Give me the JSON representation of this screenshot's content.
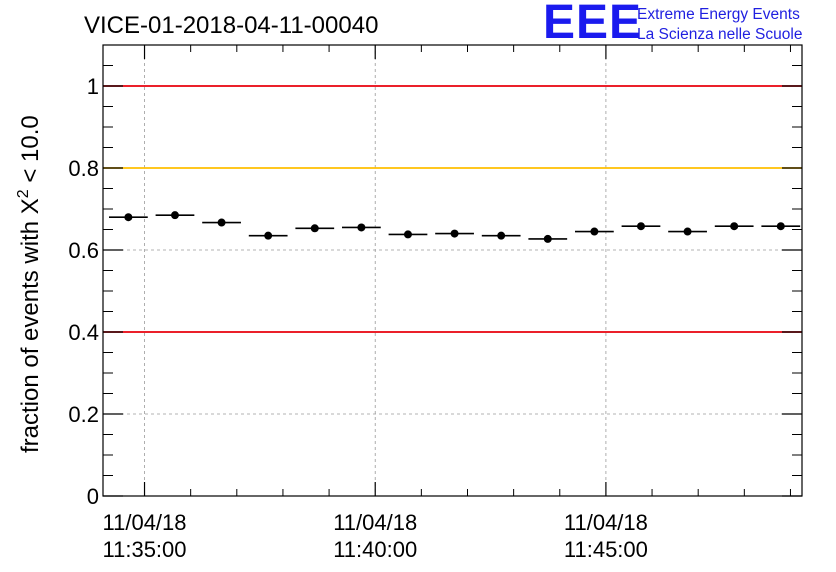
{
  "chart_data": {
    "type": "scatter",
    "title": "VICE-01-2018-04-11-00040",
    "ylabel_main": "fraction of events with",
    "ylabel_symbol": "X",
    "ylabel_exponent": "2",
    "ylabel_tail": "< 10.0",
    "xlabel": "",
    "ylim": [
      0,
      1.1
    ],
    "xlim_minutes": [
      -0.9,
      14.25
    ],
    "x_ticks": [
      {
        "minute": 0,
        "date": "11/04/18",
        "time": "11:35:00"
      },
      {
        "minute": 5,
        "date": "11/04/18",
        "time": "11:40:00"
      },
      {
        "minute": 10,
        "date": "11/04/18",
        "time": "11:45:00"
      }
    ],
    "y_ticks": [
      {
        "value": 0,
        "label": "0"
      },
      {
        "value": 0.2,
        "label": "0.2"
      },
      {
        "value": 0.4,
        "label": "0.4"
      },
      {
        "value": 0.6,
        "label": "0.6"
      },
      {
        "value": 0.8,
        "label": "0.8"
      },
      {
        "value": 1,
        "label": "1"
      }
    ],
    "grid": true,
    "reference_lines": [
      {
        "value": 1.0,
        "color": "#e8000b"
      },
      {
        "value": 0.8,
        "color": "#ffbf00"
      },
      {
        "value": 0.4,
        "color": "#e8000b"
      }
    ],
    "series": [
      {
        "bin_width_minutes": 0.84,
        "x_minutes": [
          -0.35,
          0.66,
          1.67,
          2.68,
          3.69,
          4.7,
          5.71,
          6.72,
          7.73,
          8.74,
          9.75,
          10.76,
          11.77,
          12.78,
          13.79
        ],
        "values": [
          0.68,
          0.685,
          0.667,
          0.635,
          0.653,
          0.655,
          0.638,
          0.64,
          0.635,
          0.627,
          0.645,
          0.658,
          0.645,
          0.658,
          0.658
        ]
      }
    ]
  },
  "logo": {
    "mark": "EEE",
    "line1": "Extreme Energy Events",
    "line2": "La Scienza nelle Scuole"
  },
  "colors": {
    "red": "#e8000b",
    "yellow": "#ffbf00",
    "grid": "#9a9a9a",
    "logo": "#1a1aee"
  }
}
